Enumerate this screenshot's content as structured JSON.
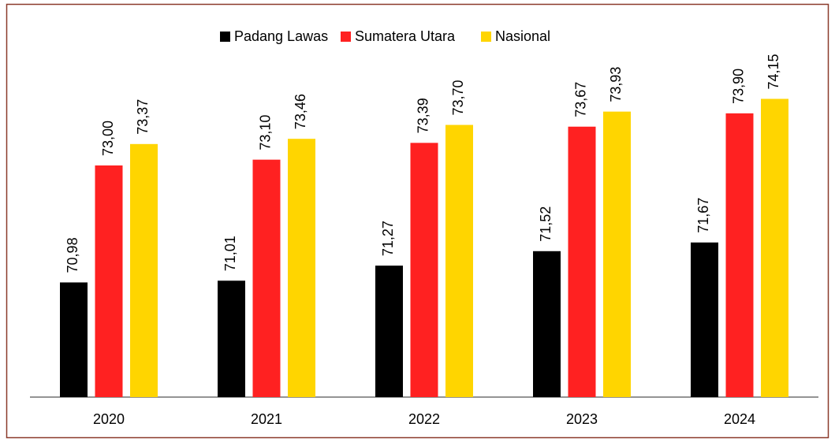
{
  "chart_data": {
    "type": "bar",
    "categories": [
      "2020",
      "2021",
      "2022",
      "2023",
      "2024"
    ],
    "series": [
      {
        "name": "Padang Lawas",
        "color": "#000000",
        "values": [
          70.98,
          71.01,
          71.27,
          71.52,
          71.67
        ],
        "value_labels": [
          "70,98",
          "71,01",
          "71,27",
          "71,52",
          "71,67"
        ]
      },
      {
        "name": "Sumatera Utara",
        "color": "#ff2121",
        "values": [
          73.0,
          73.1,
          73.39,
          73.67,
          73.9
        ],
        "value_labels": [
          "73,00",
          "73,10",
          "73,39",
          "73,67",
          "73,90"
        ]
      },
      {
        "name": "Nasional",
        "color": "#ffd500",
        "values": [
          73.37,
          73.46,
          73.7,
          73.93,
          74.15
        ],
        "value_labels": [
          "73,37",
          "73,46",
          "73,70",
          "73,93",
          "74,15"
        ]
      }
    ],
    "ylim": [
      69,
      75
    ],
    "legend": "top"
  }
}
